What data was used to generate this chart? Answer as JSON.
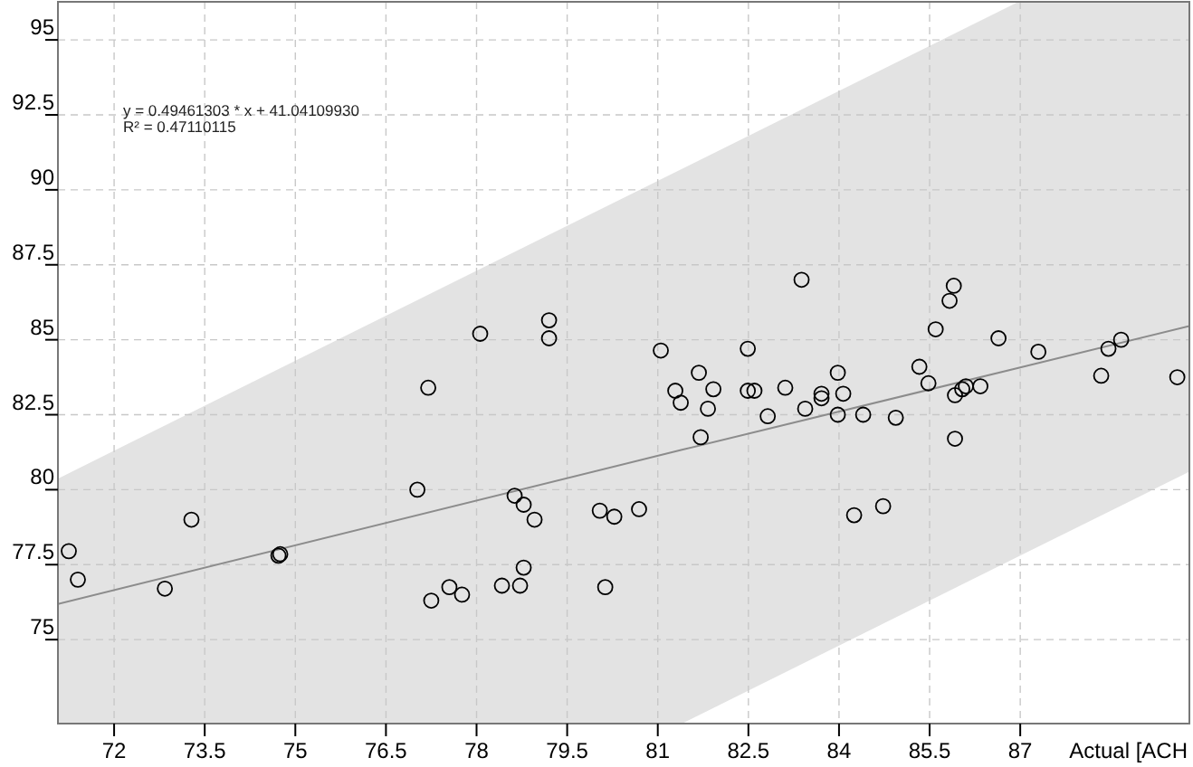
{
  "chart_data": {
    "type": "scatter",
    "xlabel": "Actual [ACH",
    "xlim": [
      71.07,
      89.8
    ],
    "ylim": [
      72.2,
      96.27
    ],
    "xticks": [
      72,
      73.5,
      75,
      76.5,
      78,
      79.5,
      81,
      82.5,
      84,
      85.5,
      87
    ],
    "yticks": [
      75,
      77.5,
      80,
      82.5,
      85,
      87.5,
      90,
      92.5,
      95
    ],
    "grid": true,
    "marker": "circle",
    "annotations": [
      "y = 0.49461303 * x + 41.04109930",
      "R² = 0.47110115"
    ],
    "series": [
      {
        "type": "line",
        "color": "#8c8c8c",
        "x": [
          71.07,
          81.4,
          86.97,
          89.8
        ],
        "values": [
          76.19,
          81.33,
          84.06,
          85.46
        ],
        "lower": [
          72.2,
          72.2,
          77.77,
          80.6
        ],
        "upper": [
          80.37,
          90.7,
          96.27,
          96.27
        ],
        "marker": "none"
      },
      {
        "color": "#000000",
        "x": [
          71.25,
          71.4,
          72.84,
          73.28,
          74.72,
          74.75,
          77.02,
          77.2,
          77.25,
          77.55,
          77.76,
          78.06,
          78.42,
          78.63,
          78.78,
          78.72,
          78.78,
          78.96,
          79.2,
          79.2,
          80.04,
          80.13,
          80.28,
          80.69,
          81.05,
          81.29,
          81.38,
          81.68,
          81.71,
          81.83,
          81.92,
          82.49,
          82.49,
          82.6,
          82.82,
          83.11,
          83.38,
          83.44,
          83.71,
          83.71,
          84.07,
          83.98,
          83.98,
          84.25,
          84.4,
          84.73,
          84.94,
          85.33,
          85.48,
          85.6,
          85.83,
          85.9,
          85.92,
          85.92,
          86.04,
          86.1,
          86.34,
          86.64,
          87.3,
          88.34,
          88.46,
          88.67,
          89.6
        ],
        "values": [
          77.95,
          77.0,
          76.7,
          79.0,
          77.8,
          77.85,
          80.0,
          83.4,
          76.3,
          76.75,
          76.5,
          85.2,
          76.8,
          79.8,
          79.5,
          76.8,
          77.4,
          79.0,
          85.65,
          85.05,
          79.3,
          76.75,
          79.1,
          79.35,
          84.64,
          83.3,
          82.9,
          83.9,
          81.75,
          82.7,
          83.35,
          84.7,
          83.3,
          83.3,
          82.45,
          83.4,
          87.0,
          82.7,
          83.2,
          83.05,
          83.2,
          82.5,
          83.9,
          79.15,
          82.5,
          79.45,
          82.4,
          84.1,
          83.55,
          85.35,
          86.3,
          86.8,
          83.15,
          81.7,
          83.35,
          83.45,
          83.45,
          85.05,
          84.6,
          83.8,
          84.7,
          85.0,
          83.75
        ]
      }
    ]
  }
}
